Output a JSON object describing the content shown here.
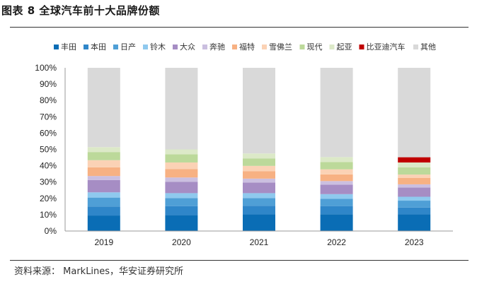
{
  "header": {
    "title": "图表 8 全球汽车前十大品牌份额"
  },
  "footer": {
    "source": "资料来源： MarkLines，华安证券研究所"
  },
  "chart_data": {
    "type": "bar",
    "stacked": true,
    "title": "",
    "xlabel": "",
    "ylabel": "",
    "categories": [
      "2019",
      "2020",
      "2021",
      "2022",
      "2023"
    ],
    "ylim": [
      0,
      100
    ],
    "y_ticks": [
      "0%",
      "10%",
      "20%",
      "30%",
      "40%",
      "50%",
      "60%",
      "70%",
      "80%",
      "90%",
      "100%"
    ],
    "legend_position": "top",
    "series": [
      {
        "name": "丰田",
        "color": "#0a6db5",
        "values": [
          9.5,
          9.8,
          10.2,
          10.3,
          10.2
        ]
      },
      {
        "name": "本田",
        "color": "#2f86c9",
        "values": [
          5.5,
          5.4,
          5.3,
          5.0,
          4.2
        ]
      },
      {
        "name": "日产",
        "color": "#4f9fd6",
        "values": [
          5.5,
          5.0,
          4.7,
          4.5,
          4.2
        ]
      },
      {
        "name": "铃木",
        "color": "#8fc9ee",
        "values": [
          3.2,
          3.0,
          3.0,
          2.8,
          2.4
        ]
      },
      {
        "name": "大众",
        "color": "#a68dc4",
        "values": [
          7.5,
          7.0,
          6.5,
          5.8,
          5.6
        ]
      },
      {
        "name": "奔驰",
        "color": "#cbbfe0",
        "values": [
          2.5,
          2.6,
          2.4,
          2.2,
          2.0
        ]
      },
      {
        "name": "福特",
        "color": "#f7b183",
        "values": [
          5.3,
          5.2,
          4.6,
          4.1,
          4.0
        ]
      },
      {
        "name": "雪佛兰",
        "color": "#fbd2b5",
        "values": [
          4.4,
          4.0,
          3.2,
          3.1,
          2.0
        ]
      },
      {
        "name": "现代",
        "color": "#bcd99a",
        "values": [
          5.0,
          5.0,
          4.6,
          4.4,
          4.4
        ]
      },
      {
        "name": "起亚",
        "color": "#dce9c8",
        "values": [
          3.0,
          3.0,
          3.0,
          3.1,
          3.0
        ]
      },
      {
        "name": "比亚迪汽车",
        "color": "#c00000",
        "values": [
          0,
          0,
          0,
          0,
          3.2
        ]
      },
      {
        "name": "其他",
        "color": "#d9d9d9",
        "values": [
          48.6,
          50.0,
          52.5,
          54.7,
          54.8
        ]
      }
    ]
  }
}
